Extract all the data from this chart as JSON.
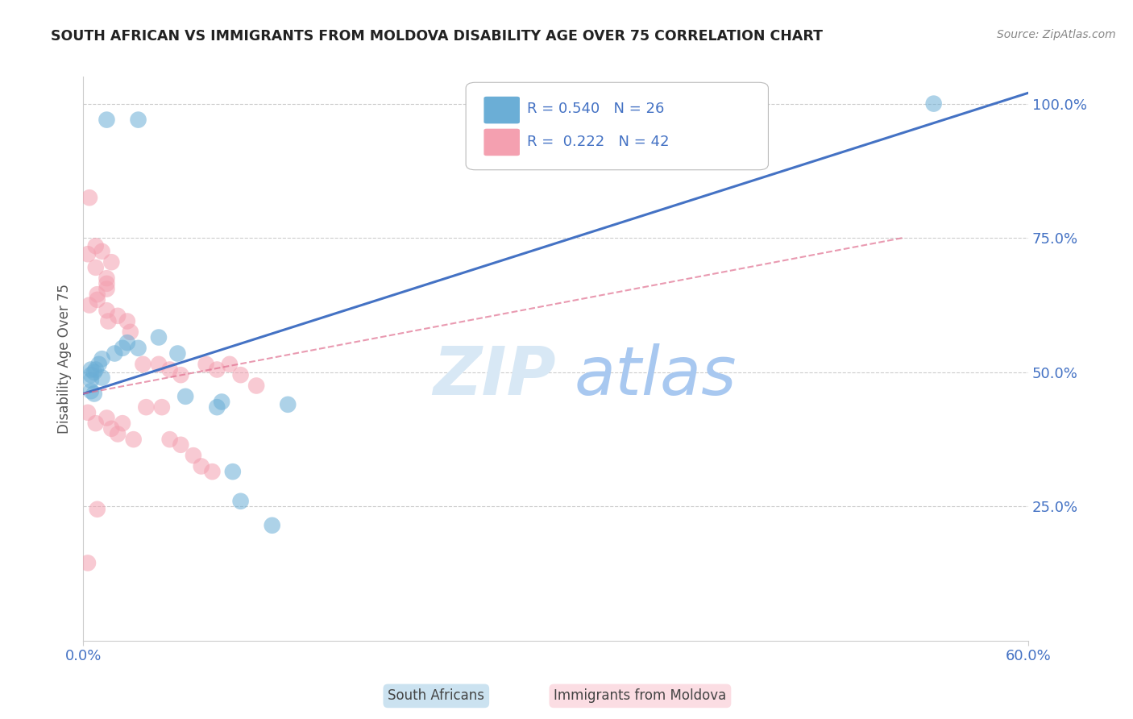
{
  "title": "SOUTH AFRICAN VS IMMIGRANTS FROM MOLDOVA DISABILITY AGE OVER 75 CORRELATION CHART",
  "source": "Source: ZipAtlas.com",
  "ylabel": "Disability Age Over 75",
  "xlim": [
    0.0,
    0.6
  ],
  "ylim": [
    0.0,
    1.05
  ],
  "ytick_labels": [
    "25.0%",
    "50.0%",
    "75.0%",
    "100.0%"
  ],
  "ytick_vals": [
    0.25,
    0.5,
    0.75,
    1.0
  ],
  "xtick_vals": [
    0.0,
    0.6
  ],
  "xtick_labels": [
    "0.0%",
    "60.0%"
  ],
  "blue_R": "R = 0.540",
  "blue_N": "N = 26",
  "pink_R": "R =  0.222",
  "pink_N": "N = 42",
  "blue_color": "#6BAED6",
  "pink_color": "#F4A0B0",
  "blue_line_color": "#4472C4",
  "pink_line_color": "#E07090",
  "tick_color": "#4472C4",
  "watermark_zip_color": "#D8E8F5",
  "watermark_atlas_color": "#A8C8F0",
  "grid_color": "#CCCCCC",
  "background_color": "#FFFFFF",
  "blue_scatter_x": [
    0.015,
    0.035,
    0.005,
    0.005,
    0.005,
    0.007,
    0.01,
    0.008,
    0.012,
    0.007,
    0.005,
    0.012,
    0.02,
    0.028,
    0.025,
    0.035,
    0.048,
    0.06,
    0.065,
    0.085,
    0.088,
    0.095,
    0.12,
    0.54,
    0.1,
    0.13
  ],
  "blue_scatter_y": [
    0.97,
    0.97,
    0.505,
    0.495,
    0.485,
    0.5,
    0.515,
    0.505,
    0.49,
    0.46,
    0.465,
    0.525,
    0.535,
    0.555,
    0.545,
    0.545,
    0.565,
    0.535,
    0.455,
    0.435,
    0.445,
    0.315,
    0.215,
    1.0,
    0.26,
    0.44
  ],
  "pink_scatter_x": [
    0.004,
    0.003,
    0.008,
    0.012,
    0.008,
    0.015,
    0.015,
    0.018,
    0.015,
    0.009,
    0.004,
    0.009,
    0.015,
    0.016,
    0.022,
    0.028,
    0.03,
    0.038,
    0.048,
    0.055,
    0.062,
    0.078,
    0.085,
    0.093,
    0.1,
    0.11,
    0.04,
    0.05,
    0.003,
    0.008,
    0.015,
    0.018,
    0.022,
    0.025,
    0.032,
    0.055,
    0.062,
    0.07,
    0.075,
    0.082,
    0.003,
    0.009
  ],
  "pink_scatter_y": [
    0.825,
    0.72,
    0.735,
    0.725,
    0.695,
    0.675,
    0.665,
    0.705,
    0.655,
    0.635,
    0.625,
    0.645,
    0.615,
    0.595,
    0.605,
    0.595,
    0.575,
    0.515,
    0.515,
    0.505,
    0.495,
    0.515,
    0.505,
    0.515,
    0.495,
    0.475,
    0.435,
    0.435,
    0.425,
    0.405,
    0.415,
    0.395,
    0.385,
    0.405,
    0.375,
    0.375,
    0.365,
    0.345,
    0.325,
    0.315,
    0.145,
    0.245
  ],
  "blue_trend_x": [
    0.0,
    0.6
  ],
  "blue_trend_y": [
    0.46,
    1.02
  ],
  "pink_trend_x": [
    0.0,
    0.52
  ],
  "pink_trend_y": [
    0.46,
    0.75
  ],
  "legend_bottom_labels": [
    "South Africans",
    "Immigrants from Moldova"
  ]
}
